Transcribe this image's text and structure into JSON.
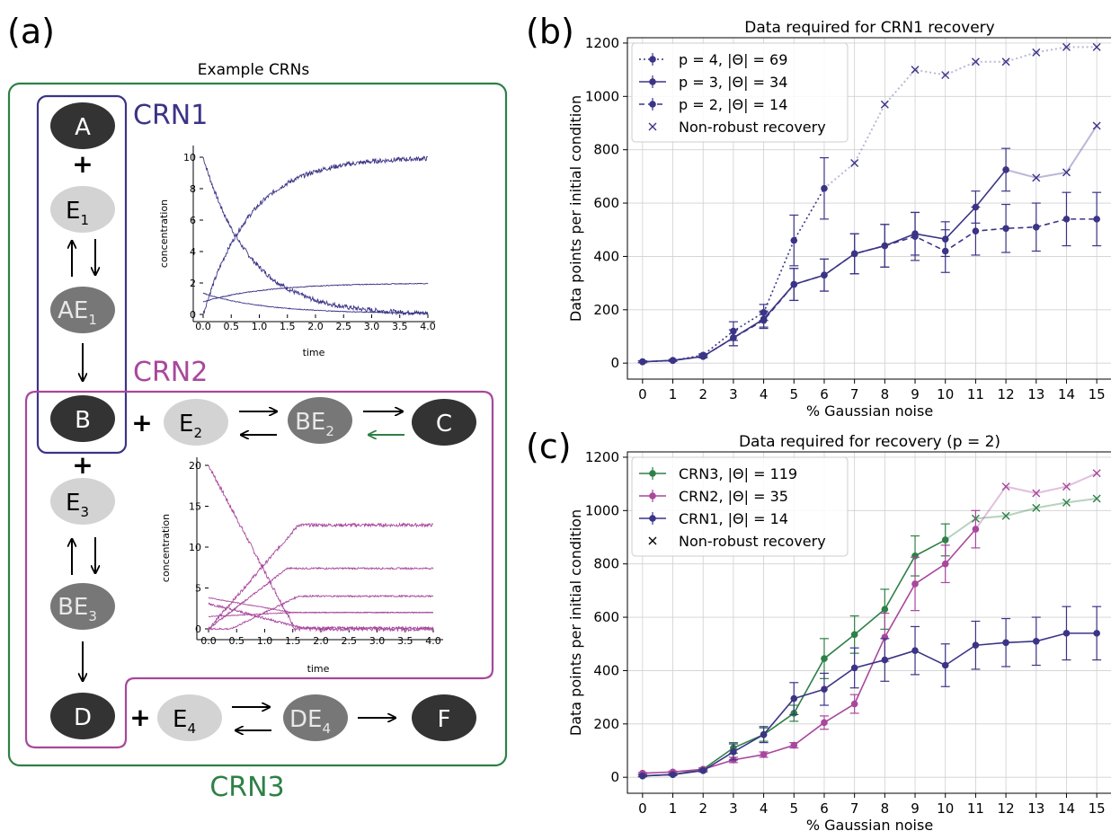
{
  "figure": {
    "panel_a": "(a)",
    "panel_b": "(b)",
    "panel_c": "(c)",
    "title": "Example CRNs"
  },
  "diagram": {
    "crn1_label": "CRN1",
    "crn2_label": "CRN2",
    "crn3_label": "CRN3",
    "colors": {
      "crn1": "#3b3486",
      "crn2": "#a8479c",
      "crn3": "#2e8046",
      "dark_node": "#333333",
      "mid_node": "#777777",
      "light_node": "#d3d3d3"
    },
    "nodes": {
      "A": "A",
      "E1": "E",
      "E1_sub": "1",
      "AE1": "AE",
      "AE1_sub": "1",
      "B": "B",
      "E2": "E",
      "E2_sub": "2",
      "BE2": "BE",
      "BE2_sub": "2",
      "C": "C",
      "E3": "E",
      "E3_sub": "3",
      "BE3": "BE",
      "BE3_sub": "3",
      "D": "D",
      "E4": "E",
      "E4_sub": "4",
      "DE4": "DE",
      "DE4_sub": "4",
      "F": "F"
    },
    "plus": "+",
    "inset1": {
      "ylabel": "concentration",
      "xlabel": "time",
      "xticks": [
        "0.0",
        "0.5",
        "1.0",
        "1.5",
        "2.0",
        "2.5",
        "3.0",
        "3.5",
        "4.0"
      ],
      "yticks": [
        "0",
        "2",
        "4",
        "6",
        "8",
        "10"
      ],
      "xlim": [
        0,
        4
      ],
      "ylim": [
        0,
        10
      ]
    },
    "inset2": {
      "ylabel": "concentration",
      "xlabel": "time",
      "xticks": [
        "0.0",
        "0.5",
        "1.0",
        "1.5",
        "2.0",
        "2.5",
        "3.0",
        "3.5",
        "4.0"
      ],
      "yticks": [
        "0",
        "5",
        "10",
        "15",
        "20"
      ],
      "xlim": [
        0,
        4
      ],
      "ylim": [
        0,
        20
      ]
    }
  },
  "chart_data": [
    {
      "type": "line",
      "title": "Data required for CRN1 recovery",
      "xlabel": "% Gaussian noise",
      "ylabel": "Data points per initial condition",
      "x": [
        0,
        1,
        2,
        3,
        4,
        5,
        6,
        7,
        8,
        9,
        10,
        11,
        12,
        13,
        14,
        15
      ],
      "ylim": [
        0,
        1200
      ],
      "yticks": [
        0,
        200,
        400,
        600,
        800,
        1000,
        1200
      ],
      "grid": true,
      "legend_position": "top-left",
      "series": [
        {
          "name": "p = 4, |Θ| = 69",
          "style": "dotted",
          "color": "#3b3486",
          "values": [
            5,
            10,
            30,
            120,
            190,
            460,
            655,
            750,
            970,
            1100,
            1080,
            1130,
            1130,
            1165,
            1185,
            1185
          ],
          "errors": [
            3,
            3,
            5,
            35,
            30,
            95,
            115,
            0,
            0,
            0,
            0,
            0,
            0,
            0,
            0,
            0
          ],
          "nonrobust_from": 7
        },
        {
          "name": "p = 3, |Θ| = 34",
          "style": "solid",
          "color": "#3b3486",
          "values": [
            5,
            10,
            25,
            95,
            165,
            295,
            330,
            410,
            440,
            485,
            465,
            585,
            725,
            695,
            715,
            890
          ],
          "errors": [
            3,
            3,
            5,
            30,
            30,
            60,
            60,
            75,
            80,
            80,
            65,
            60,
            80,
            0,
            0,
            0
          ],
          "nonrobust_from": 13
        },
        {
          "name": "p = 2, |Θ| = 14",
          "style": "dashed",
          "color": "#3b3486",
          "values": [
            5,
            10,
            25,
            95,
            160,
            295,
            330,
            410,
            440,
            475,
            420,
            495,
            505,
            510,
            540,
            540
          ],
          "errors": [
            3,
            3,
            5,
            30,
            30,
            60,
            60,
            75,
            80,
            90,
            80,
            90,
            90,
            90,
            100,
            100
          ],
          "nonrobust_from": null
        }
      ],
      "legend_extra": "Non-robust recovery"
    },
    {
      "type": "line",
      "title": "Data required for recovery (p = 2)",
      "xlabel": "% Gaussian noise",
      "ylabel": "Data points per initial condition",
      "x": [
        0,
        1,
        2,
        3,
        4,
        5,
        6,
        7,
        8,
        9,
        10,
        11,
        12,
        13,
        14,
        15
      ],
      "ylim": [
        0,
        1200
      ],
      "yticks": [
        0,
        200,
        400,
        600,
        800,
        1000,
        1200
      ],
      "grid": true,
      "legend_position": "top-left",
      "series": [
        {
          "name": "CRN3, |Θ| = 119",
          "color": "#2e8046",
          "values": [
            5,
            10,
            30,
            110,
            160,
            240,
            445,
            535,
            630,
            830,
            890,
            970,
            980,
            1010,
            1030,
            1045
          ],
          "errors": [
            3,
            3,
            5,
            20,
            25,
            30,
            75,
            70,
            75,
            75,
            60,
            0,
            0,
            0,
            0,
            0
          ],
          "nonrobust_from": 11
        },
        {
          "name": "CRN2, |Θ| = 35",
          "color": "#a8479c",
          "values": [
            15,
            20,
            30,
            65,
            85,
            120,
            205,
            275,
            525,
            725,
            800,
            930,
            1090,
            1065,
            1090,
            1140
          ],
          "errors": [
            3,
            3,
            5,
            10,
            10,
            10,
            25,
            35,
            90,
            100,
            70,
            70,
            0,
            0,
            0,
            0
          ],
          "nonrobust_from": 12
        },
        {
          "name": "CRN1, |Θ| = 14",
          "color": "#3b3486",
          "values": [
            5,
            10,
            25,
            95,
            160,
            295,
            330,
            410,
            440,
            475,
            420,
            495,
            505,
            510,
            540,
            540
          ],
          "errors": [
            3,
            3,
            5,
            30,
            30,
            60,
            60,
            75,
            80,
            90,
            80,
            90,
            90,
            90,
            100,
            100
          ],
          "nonrobust_from": null
        }
      ],
      "legend_extra": "Non-robust recovery"
    }
  ]
}
